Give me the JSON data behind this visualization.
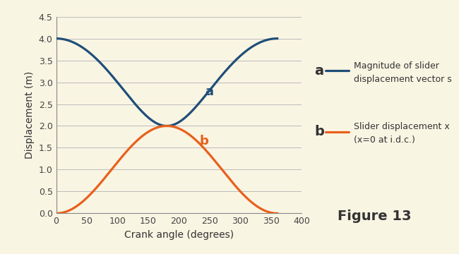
{
  "xlabel": "Crank angle (degrees)",
  "ylabel": "Displacement (m)",
  "bg_color": "#f9f5e3",
  "line_a_color": "#1f4e79",
  "line_b_color": "#e8601c",
  "xlim": [
    0,
    400
  ],
  "ylim": [
    0,
    4.5
  ],
  "xticks": [
    0,
    50,
    100,
    150,
    200,
    250,
    300,
    350,
    400
  ],
  "yticks": [
    0,
    0.5,
    1.0,
    1.5,
    2.0,
    2.5,
    3.0,
    3.5,
    4.0,
    4.5
  ],
  "crank_r": 1.0,
  "connect_L": 3.0,
  "figure_label": "Figure 13",
  "ann_a_x": 242,
  "ann_a_y": 2.7,
  "ann_b_x": 233,
  "ann_b_y": 1.58,
  "leg_a_label": "a",
  "leg_b_label": "b",
  "leg_a_text": "Magnitude of slider\ndisplacement vector s",
  "leg_b_text": "Slider displacement x\n(x=0 at i.d.c.)"
}
